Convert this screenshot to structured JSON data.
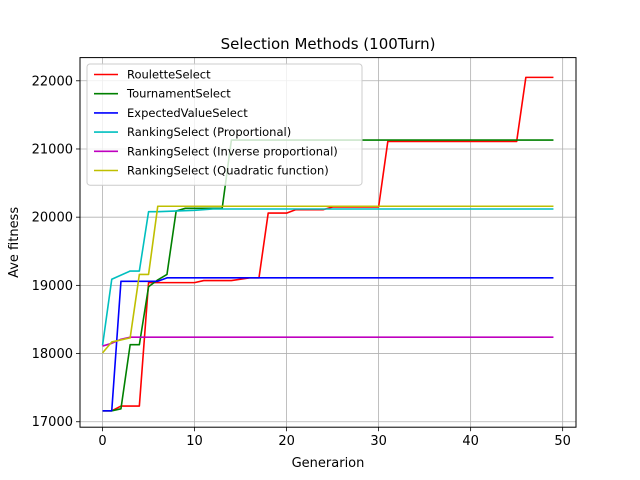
{
  "chart_data": {
    "type": "line",
    "title": "Selection Methods (100Turn)",
    "xlabel": "Generarion",
    "ylabel": "Ave fitness",
    "xlim": [
      -2.45,
      51.45
    ],
    "ylim": [
      16920,
      22340
    ],
    "xticks": [
      0,
      10,
      20,
      30,
      40,
      50
    ],
    "yticks": [
      17000,
      18000,
      19000,
      20000,
      21000,
      22000
    ],
    "grid": true,
    "legend_position": "top-left",
    "series": [
      {
        "name": "RouletteSelect",
        "color": "#ff0000",
        "points": [
          [
            0,
            17160
          ],
          [
            1,
            17160
          ],
          [
            2,
            17230
          ],
          [
            4,
            17230
          ],
          [
            5,
            19040
          ],
          [
            6,
            19040
          ],
          [
            10,
            19040
          ],
          [
            11,
            19070
          ],
          [
            14,
            19070
          ],
          [
            16,
            19110
          ],
          [
            17,
            19110
          ],
          [
            18,
            20060
          ],
          [
            20,
            20060
          ],
          [
            21,
            20110
          ],
          [
            24,
            20110
          ],
          [
            25,
            20150
          ],
          [
            30,
            20150
          ],
          [
            31,
            21110
          ],
          [
            45,
            21110
          ],
          [
            46,
            22050
          ],
          [
            49,
            22050
          ]
        ]
      },
      {
        "name": "TournamentSelect",
        "color": "#008000",
        "points": [
          [
            0,
            17160
          ],
          [
            1,
            17160
          ],
          [
            2,
            17190
          ],
          [
            3,
            18130
          ],
          [
            4,
            18130
          ],
          [
            5,
            18980
          ],
          [
            6,
            19080
          ],
          [
            7,
            19160
          ],
          [
            8,
            20090
          ],
          [
            9,
            20130
          ],
          [
            13,
            20130
          ],
          [
            14,
            21130
          ],
          [
            49,
            21130
          ]
        ]
      },
      {
        "name": "ExpectedValueSelect",
        "color": "#0000ff",
        "points": [
          [
            0,
            17160
          ],
          [
            1,
            17160
          ],
          [
            2,
            19060
          ],
          [
            5,
            19060
          ],
          [
            6,
            19060
          ],
          [
            7,
            19110
          ],
          [
            49,
            19110
          ]
        ]
      },
      {
        "name": "RankingSelect (Proportional)",
        "color": "#00bfbf",
        "points": [
          [
            0,
            18120
          ],
          [
            1,
            19090
          ],
          [
            3,
            19210
          ],
          [
            4,
            19210
          ],
          [
            5,
            20080
          ],
          [
            6,
            20080
          ],
          [
            10,
            20100
          ],
          [
            12,
            20120
          ],
          [
            49,
            20120
          ]
        ]
      },
      {
        "name": "RankingSelect (Inverse proportional)",
        "color": "#bf00bf",
        "points": [
          [
            0,
            18110
          ],
          [
            1,
            18150
          ],
          [
            2,
            18210
          ],
          [
            3,
            18240
          ],
          [
            49,
            18240
          ]
        ]
      },
      {
        "name": "RankingSelect (Quadratic function)",
        "color": "#bfbf00",
        "points": [
          [
            0,
            18010
          ],
          [
            1,
            18170
          ],
          [
            2,
            18200
          ],
          [
            3,
            18230
          ],
          [
            4,
            19160
          ],
          [
            5,
            19160
          ],
          [
            6,
            20160
          ],
          [
            49,
            20160
          ]
        ]
      }
    ]
  }
}
